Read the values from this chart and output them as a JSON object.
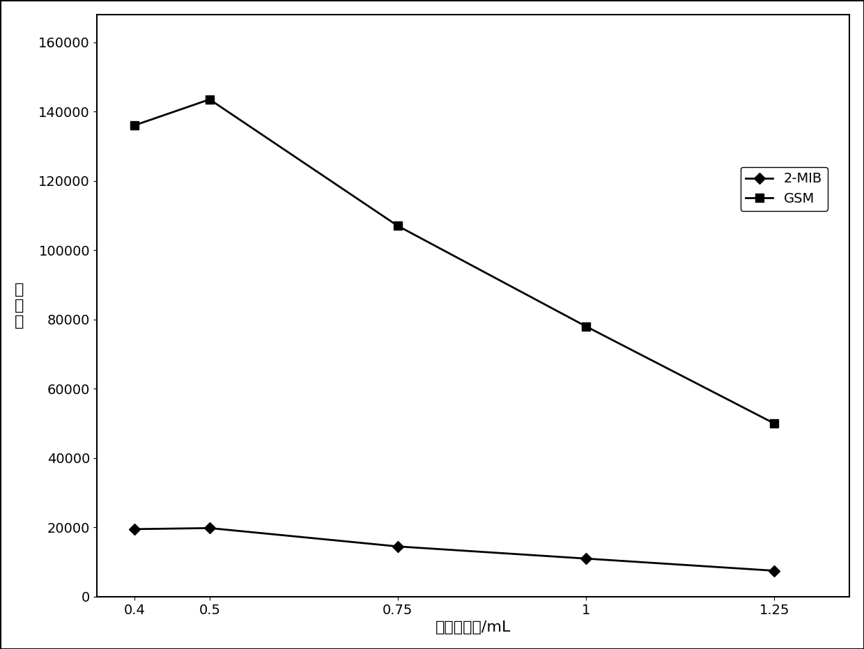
{
  "x": [
    0.4,
    0.5,
    0.75,
    1.0,
    1.25
  ],
  "x_labels": [
    "0.4",
    "0.5",
    "0.75",
    "1",
    "1.25"
  ],
  "mib_values": [
    19500,
    19800,
    14500,
    11000,
    7500
  ],
  "gsm_values": [
    136000,
    143500,
    107000,
    78000,
    50000
  ],
  "xlabel": "萃取剂用量/mL",
  "ylabel": "峰\n面\n积",
  "legend_mib": "2-MIB",
  "legend_gsm": "GSM",
  "ylim": [
    0,
    168000
  ],
  "yticks": [
    0,
    20000,
    40000,
    60000,
    80000,
    100000,
    120000,
    140000,
    160000
  ],
  "line_color": "#000000",
  "marker_mib": "D",
  "marker_gsm": "s",
  "markersize": 8,
  "linewidth": 2,
  "background_color": "#ffffff",
  "title_fontsize": 14,
  "axis_fontsize": 16,
  "tick_fontsize": 14,
  "legend_fontsize": 14
}
